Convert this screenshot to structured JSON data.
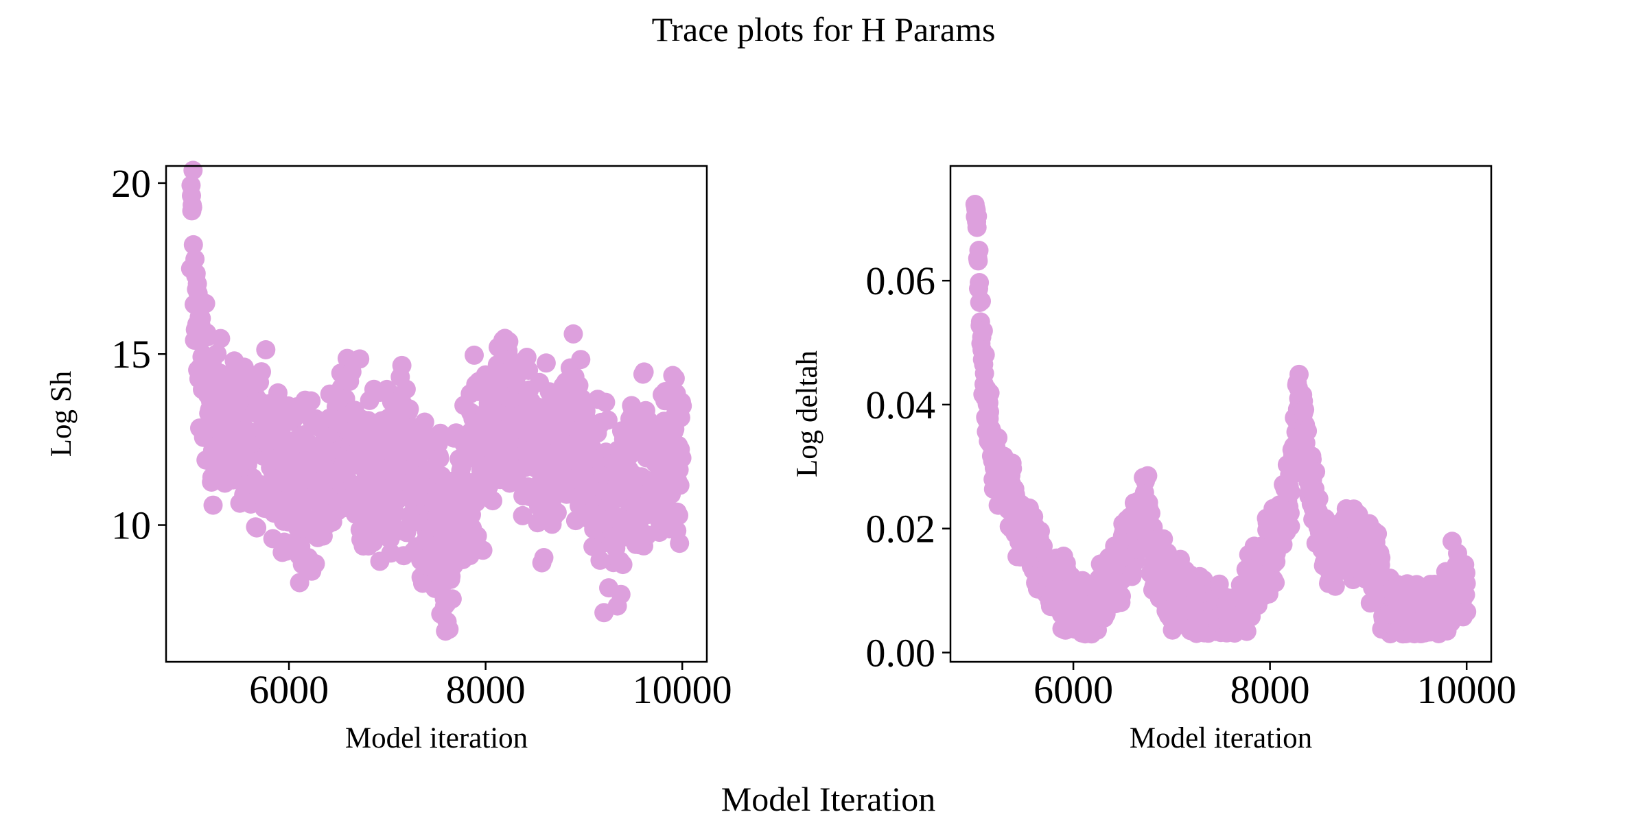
{
  "figure": {
    "title": "Trace plots for H Params",
    "xlabel": "Model Iteration"
  },
  "colors": {
    "points": "#dda0dd",
    "axes": "#000000",
    "background": "#ffffff"
  },
  "chart_data": [
    {
      "type": "scatter",
      "title": "",
      "xlabel": "Model iteration",
      "ylabel": "Log Sh",
      "xlim": [
        4750,
        10250
      ],
      "ylim": [
        6.0,
        20.5
      ],
      "xticks": [
        6000,
        8000,
        10000
      ],
      "yticks": [
        10,
        15,
        20
      ],
      "ytick_labels": [
        "10",
        "15",
        "20"
      ],
      "grid": false,
      "legend": "none",
      "series": [
        {
          "x": [
            5000,
            5020,
            5040,
            5060,
            5080,
            5100,
            5150,
            5200,
            5300,
            5400,
            5500,
            5600,
            5700,
            5800,
            5900,
            6000,
            6100,
            6200,
            6300,
            6400,
            6500,
            6600,
            6700,
            6800,
            6900,
            7000,
            7100,
            7200,
            7300,
            7400,
            7500,
            7550,
            7600,
            7650,
            7700,
            7800,
            7900,
            8000,
            8100,
            8200,
            8300,
            8400,
            8500,
            8600,
            8700,
            8800,
            8900,
            9000,
            9100,
            9200,
            9300,
            9400,
            9500,
            9600,
            9700,
            9800,
            9900,
            10000
          ],
          "y": [
            19.8,
            18.5,
            17.2,
            16.0,
            15.2,
            14.6,
            14.0,
            13.5,
            13.2,
            12.9,
            12.7,
            12.4,
            12.1,
            11.8,
            11.6,
            11.2,
            11.0,
            11.2,
            11.6,
            11.9,
            12.2,
            12.3,
            12.0,
            11.7,
            11.5,
            11.4,
            11.6,
            11.9,
            11.5,
            11.0,
            10.4,
            9.6,
            8.4,
            9.5,
            10.5,
            11.4,
            12.0,
            12.6,
            13.1,
            13.6,
            13.3,
            12.8,
            12.5,
            12.0,
            12.0,
            12.5,
            12.8,
            12.2,
            11.6,
            10.8,
            10.5,
            11.2,
            11.4,
            11.6,
            11.2,
            11.5,
            12.0,
            12.2
          ]
        }
      ]
    },
    {
      "type": "scatter",
      "title": "",
      "xlabel": "Model iteration",
      "ylabel": "Log deltah",
      "xlim": [
        4750,
        10250
      ],
      "ylim": [
        -0.0015,
        0.0785
      ],
      "xticks": [
        6000,
        8000,
        10000
      ],
      "yticks": [
        0.0,
        0.02,
        0.04,
        0.06
      ],
      "ytick_labels": [
        "0.00",
        "0.02",
        "0.04",
        "0.06"
      ],
      "grid": false,
      "legend": "none",
      "series": [
        {
          "x": [
            5000,
            5020,
            5040,
            5060,
            5080,
            5100,
            5150,
            5200,
            5300,
            5400,
            5500,
            5600,
            5700,
            5800,
            5900,
            6000,
            6100,
            6200,
            6300,
            6400,
            6500,
            6600,
            6700,
            6750,
            6800,
            6900,
            7000,
            7100,
            7200,
            7300,
            7400,
            7500,
            7600,
            7700,
            7800,
            7900,
            8000,
            8100,
            8200,
            8250,
            8300,
            8350,
            8400,
            8500,
            8600,
            8700,
            8800,
            8900,
            9000,
            9100,
            9200,
            9300,
            9400,
            9500,
            9600,
            9700,
            9800,
            9850,
            9900,
            10000
          ],
          "y": [
            0.073,
            0.067,
            0.06,
            0.052,
            0.047,
            0.042,
            0.036,
            0.031,
            0.028,
            0.024,
            0.02,
            0.017,
            0.013,
            0.011,
            0.009,
            0.007,
            0.005,
            0.007,
            0.009,
            0.012,
            0.015,
            0.018,
            0.022,
            0.024,
            0.016,
            0.011,
            0.009,
            0.009,
            0.008,
            0.007,
            0.006,
            0.005,
            0.005,
            0.007,
            0.01,
            0.013,
            0.016,
            0.02,
            0.025,
            0.033,
            0.043,
            0.035,
            0.026,
            0.02,
            0.016,
            0.015,
            0.019,
            0.018,
            0.016,
            0.012,
            0.007,
            0.005,
            0.005,
            0.005,
            0.005,
            0.006,
            0.008,
            0.011,
            0.01,
            0.013
          ]
        }
      ]
    }
  ]
}
